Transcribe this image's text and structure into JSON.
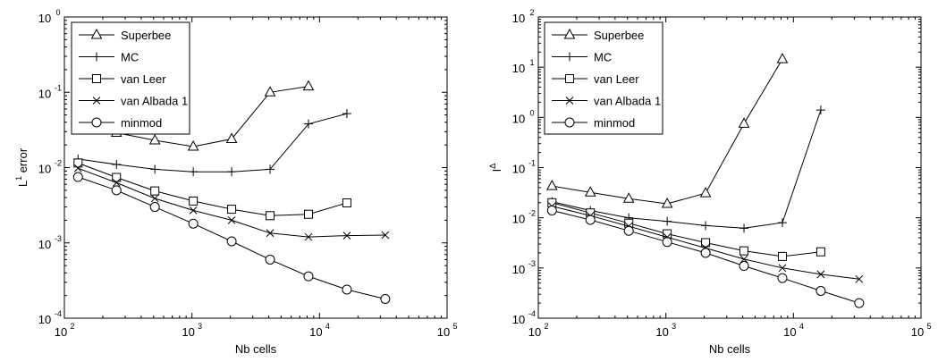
{
  "chart_data": [
    {
      "type": "line",
      "xlabel": "Nb cells",
      "ylabel": "L",
      "ylabel_superscript": "1",
      "ylabel_suffix": " error",
      "xscale": "log",
      "yscale": "log",
      "xlim": [
        100,
        100000
      ],
      "ylim": [
        0.0001,
        1
      ],
      "x_tick_labels": [
        "10",
        "10",
        "10",
        "10"
      ],
      "x_tick_exponents": [
        "2",
        "3",
        "4",
        "5"
      ],
      "y_tick_labels": [
        "10",
        "10",
        "10",
        "10",
        "10"
      ],
      "y_tick_exponents": [
        "-4",
        "-3",
        "-2",
        "-1",
        "0"
      ],
      "grid": false,
      "legend_position": "top-left",
      "series": [
        {
          "name": "Superbee",
          "marker": "triangle",
          "x": [
            128,
            256,
            512,
            1024,
            2048,
            4096,
            8192
          ],
          "y": [
            0.034,
            0.029,
            0.023,
            0.019,
            0.024,
            0.1,
            0.12
          ]
        },
        {
          "name": "MC",
          "marker": "plus",
          "x": [
            128,
            256,
            512,
            1024,
            2048,
            4096,
            8192,
            16384
          ],
          "y": [
            0.013,
            0.011,
            0.0095,
            0.0088,
            0.0088,
            0.0095,
            0.038,
            0.052
          ]
        },
        {
          "name": "van Leer",
          "marker": "square",
          "x": [
            128,
            256,
            512,
            1024,
            2048,
            4096,
            8192,
            16384
          ],
          "y": [
            0.0115,
            0.0074,
            0.0049,
            0.0036,
            0.0028,
            0.0023,
            0.0024,
            0.0034
          ]
        },
        {
          "name": "van Albada 1",
          "marker": "x",
          "x": [
            128,
            256,
            512,
            1024,
            2048,
            4096,
            8192,
            16384,
            32768
          ],
          "y": [
            0.0098,
            0.0063,
            0.0039,
            0.0027,
            0.002,
            0.00135,
            0.0012,
            0.00125,
            0.00127
          ]
        },
        {
          "name": "minmod",
          "marker": "circle",
          "x": [
            128,
            256,
            512,
            1024,
            2048,
            4096,
            8192,
            16384,
            32768
          ],
          "y": [
            0.0075,
            0.005,
            0.003,
            0.0018,
            0.00105,
            0.0006,
            0.00036,
            0.00024,
            0.00018
          ]
        }
      ]
    },
    {
      "type": "line",
      "xlabel": "Nb cells",
      "ylabel": "I",
      "ylabel_superscript": "Δ",
      "ylabel_suffix": "",
      "xscale": "log",
      "yscale": "log",
      "xlim": [
        100,
        100000
      ],
      "ylim": [
        0.0001,
        100
      ],
      "x_tick_labels": [
        "10",
        "10",
        "10",
        "10"
      ],
      "x_tick_exponents": [
        "2",
        "3",
        "4",
        "5"
      ],
      "y_tick_labels": [
        "10",
        "10",
        "10",
        "10",
        "10",
        "10",
        "10"
      ],
      "y_tick_exponents": [
        "-4",
        "-3",
        "-2",
        "-1",
        "0",
        "1",
        "2"
      ],
      "grid": false,
      "legend_position": "top-left",
      "series": [
        {
          "name": "Superbee",
          "marker": "triangle",
          "x": [
            128,
            256,
            512,
            1024,
            2048,
            4096,
            8192
          ],
          "y": [
            0.043,
            0.032,
            0.024,
            0.019,
            0.031,
            0.75,
            14.5
          ]
        },
        {
          "name": "MC",
          "marker": "plus",
          "x": [
            128,
            256,
            512,
            1024,
            2048,
            4096,
            8192,
            16384
          ],
          "y": [
            0.021,
            0.014,
            0.01,
            0.0085,
            0.007,
            0.0062,
            0.008,
            1.4
          ]
        },
        {
          "name": "van Leer",
          "marker": "square",
          "x": [
            128,
            256,
            512,
            1024,
            2048,
            4096,
            8192,
            16384
          ],
          "y": [
            0.02,
            0.0125,
            0.0078,
            0.0048,
            0.0032,
            0.0022,
            0.0017,
            0.0021
          ]
        },
        {
          "name": "van Albada 1",
          "marker": "x",
          "x": [
            128,
            256,
            512,
            1024,
            2048,
            4096,
            8192,
            16384,
            32768
          ],
          "y": [
            0.017,
            0.011,
            0.0068,
            0.0041,
            0.0025,
            0.0015,
            0.001,
            0.00075,
            0.0006
          ]
        },
        {
          "name": "minmod",
          "marker": "circle",
          "x": [
            128,
            256,
            512,
            1024,
            2048,
            4096,
            8192,
            16384,
            32768
          ],
          "y": [
            0.014,
            0.0091,
            0.0055,
            0.0033,
            0.002,
            0.0011,
            0.00063,
            0.00035,
            0.0002
          ]
        }
      ]
    }
  ]
}
